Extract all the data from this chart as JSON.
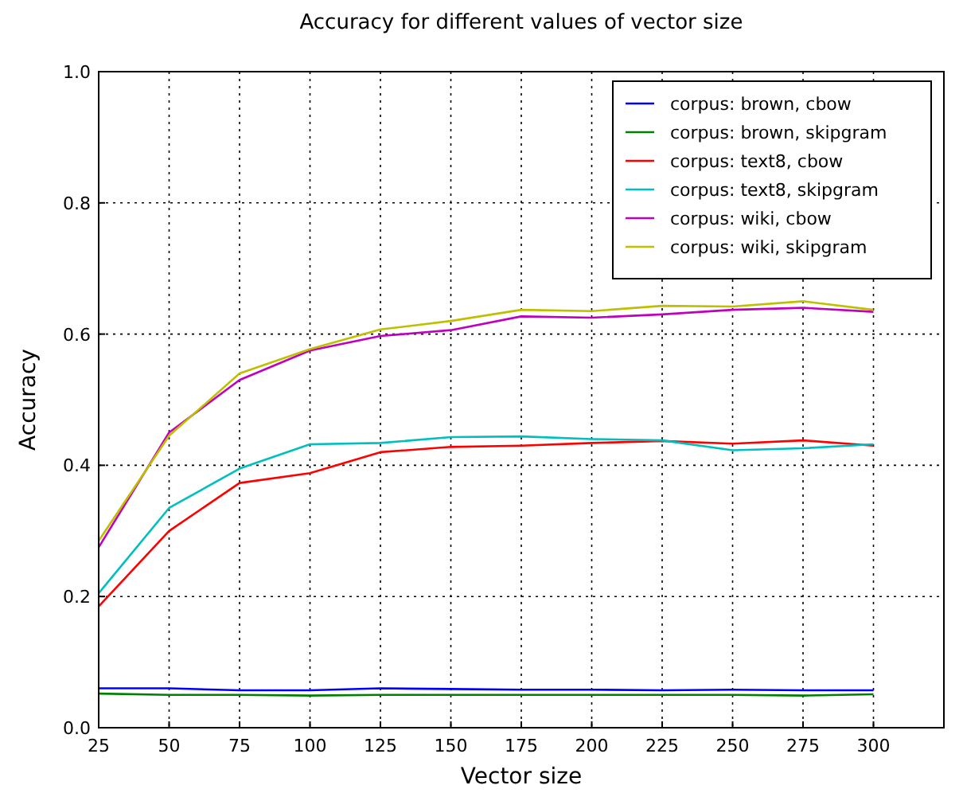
{
  "chart_data": {
    "type": "line",
    "title": "Accuracy for different values of vector size",
    "xlabel": "Vector size",
    "ylabel": "Accuracy",
    "x": [
      25,
      50,
      75,
      100,
      125,
      150,
      175,
      200,
      225,
      250,
      275,
      300
    ],
    "xlim": [
      25,
      325
    ],
    "xticks": [
      25,
      50,
      75,
      100,
      125,
      150,
      175,
      200,
      225,
      250,
      275,
      300
    ],
    "ylim": [
      0,
      1
    ],
    "yticks": [
      {
        "value": 0,
        "label": "0.0"
      },
      0.2,
      0.4,
      0.6,
      0.8,
      {
        "value": 1,
        "label": "1.0"
      }
    ],
    "grid": true,
    "legend": "top right",
    "line_style": "solid",
    "marker": "none",
    "series": [
      {
        "name": "corpus: brown, cbow",
        "color": "#0000ff",
        "values": [
          0.06,
          0.06,
          0.057,
          0.057,
          0.06,
          0.059,
          0.058,
          0.058,
          0.057,
          0.058,
          0.057,
          0.057
        ]
      },
      {
        "name": "corpus: brown, skipgram",
        "color": "#008000",
        "values": [
          0.052,
          0.05,
          0.05,
          0.049,
          0.05,
          0.05,
          0.05,
          0.05,
          0.05,
          0.05,
          0.049,
          0.051
        ]
      },
      {
        "name": "corpus: text8, cbow",
        "color": "#ff0000",
        "values": [
          0.185,
          0.3,
          0.373,
          0.388,
          0.42,
          0.428,
          0.43,
          0.434,
          0.437,
          0.433,
          0.438,
          0.43
        ]
      },
      {
        "name": "corpus: text8, skipgram",
        "color": "#00bfbf",
        "values": [
          0.205,
          0.335,
          0.395,
          0.432,
          0.434,
          0.443,
          0.444,
          0.44,
          0.438,
          0.423,
          0.426,
          0.432
        ]
      },
      {
        "name": "corpus: wiki, cbow",
        "color": "#bf00bf",
        "values": [
          0.275,
          0.45,
          0.53,
          0.575,
          0.597,
          0.606,
          0.627,
          0.625,
          0.63,
          0.637,
          0.64,
          0.634
        ]
      },
      {
        "name": "corpus: wiki, skipgram",
        "color": "#bfbf00",
        "values": [
          0.285,
          0.445,
          0.54,
          0.577,
          0.607,
          0.62,
          0.637,
          0.635,
          0.643,
          0.642,
          0.65,
          0.637
        ]
      }
    ]
  }
}
